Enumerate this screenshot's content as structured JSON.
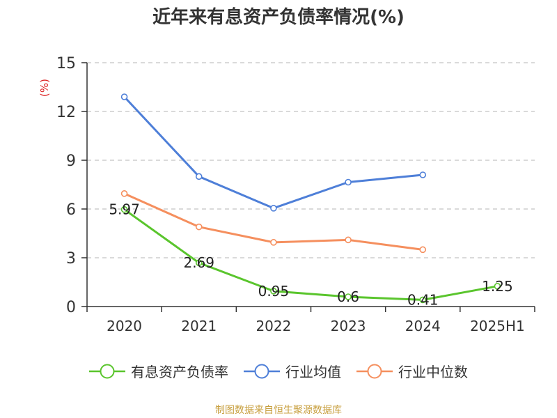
{
  "chart_data": {
    "type": "line",
    "title": "近年来有息资产负债率情况(%)",
    "ylabel": "(%)",
    "xlabel": "",
    "categories": [
      "2020",
      "2021",
      "2022",
      "2023",
      "2024",
      "2025H1"
    ],
    "ylim": [
      0,
      15
    ],
    "yticks": [
      0,
      3,
      6,
      9,
      12,
      15
    ],
    "grid": true,
    "legend_position": "bottom",
    "series": [
      {
        "name": "有息资产负债率",
        "color": "#5ac52d",
        "values": [
          5.97,
          2.69,
          0.95,
          0.6,
          0.41,
          1.25
        ],
        "labels": [
          "5.97",
          "2.69",
          "0.95",
          "0.6",
          "0.41",
          "1.25"
        ]
      },
      {
        "name": "行业均值",
        "color": "#4e7fd8",
        "values": [
          12.9,
          8.0,
          6.05,
          7.65,
          8.1,
          null
        ]
      },
      {
        "name": "行业中位数",
        "color": "#f58f5e",
        "values": [
          6.95,
          4.9,
          3.95,
          4.1,
          3.5,
          null
        ]
      }
    ]
  },
  "source_note": "制图数据来自恒生聚源数据库"
}
